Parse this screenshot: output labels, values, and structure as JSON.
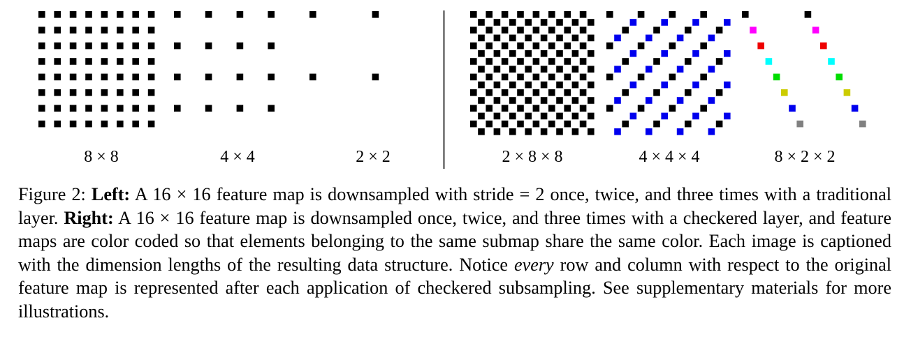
{
  "panels": {
    "left": [
      {
        "label": "8 × 8",
        "scheme": "black"
      },
      {
        "label": "4 × 4",
        "scheme": "black"
      },
      {
        "label": "2 × 2",
        "scheme": "black"
      }
    ],
    "right": [
      {
        "label": "2 × 8 × 8",
        "scheme": "checkered"
      },
      {
        "label": "4 × 4 × 4",
        "scheme": "checkered"
      },
      {
        "label": "8 × 2 × 2",
        "scheme": "checkered"
      }
    ],
    "colors": {
      "black": "#000000",
      "red": "#ee0000",
      "green": "#00dd00",
      "blue": "#0000ee",
      "magenta": "#ff00ff",
      "cyan": "#00ffff",
      "gray": "#808080",
      "olive": "#cccc00"
    }
  },
  "caption": {
    "figure_label": "Figure 2:",
    "left_heading": "Left:",
    "left_pre": " A ",
    "left_math": "16 × 16",
    "left_text": " feature map is downsampled with stride = 2 once, twice, and three times with a traditional layer. ",
    "right_heading": "Right:",
    "right_pre": " A ",
    "right_math": "16 × 16",
    "right_text_1": " feature map is downsampled once, twice, and three times with a checkered layer, and feature maps are color coded so that elements belonging to the same submap share the same color. Each image is captioned with the dimension lengths of the resulting data structure. Notice ",
    "emphasis": "every",
    "right_text_2": " row and column with respect to the original feature map is represented after each application of checkered subsampling. See supplementary materials for more illustrations."
  }
}
